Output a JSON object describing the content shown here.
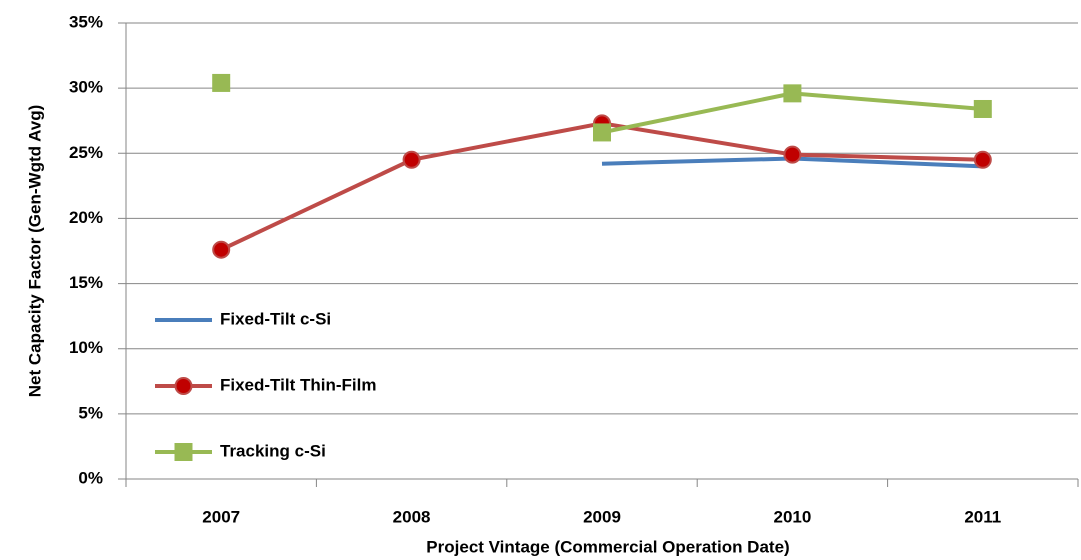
{
  "chart_data": {
    "type": "line",
    "x_label": "Project Vintage (Commercial Operation Date)",
    "y_label": "Net Capacity Factor (Gen-Wgtd Avg)",
    "categories": [
      "2007",
      "2008",
      "2009",
      "2010",
      "2011"
    ],
    "series": [
      {
        "name": "Fixed-Tilt c-Si",
        "color": "#4a7ebb",
        "marker": "none",
        "values": [
          null,
          null,
          24.2,
          24.6,
          24.0
        ]
      },
      {
        "name": "Fixed-Tilt Thin-Film",
        "color": "#be4b48",
        "marker": "circle",
        "values": [
          17.6,
          24.5,
          27.3,
          24.9,
          24.5
        ]
      },
      {
        "name": "Tracking c-Si",
        "color": "#98b954",
        "marker": "square",
        "values": [
          30.4,
          null,
          26.6,
          29.6,
          28.4
        ]
      }
    ],
    "ylim": [
      0,
      35
    ],
    "yticks": [
      {
        "value": 0,
        "label": "0%"
      },
      {
        "value": 5,
        "label": "5%"
      },
      {
        "value": 10,
        "label": "10%"
      },
      {
        "value": 15,
        "label": "15%"
      },
      {
        "value": 20,
        "label": "20%"
      },
      {
        "value": 25,
        "label": "25%"
      },
      {
        "value": 30,
        "label": "30%"
      },
      {
        "value": 35,
        "label": "35%"
      }
    ],
    "grid": true,
    "legend": "lower left"
  }
}
